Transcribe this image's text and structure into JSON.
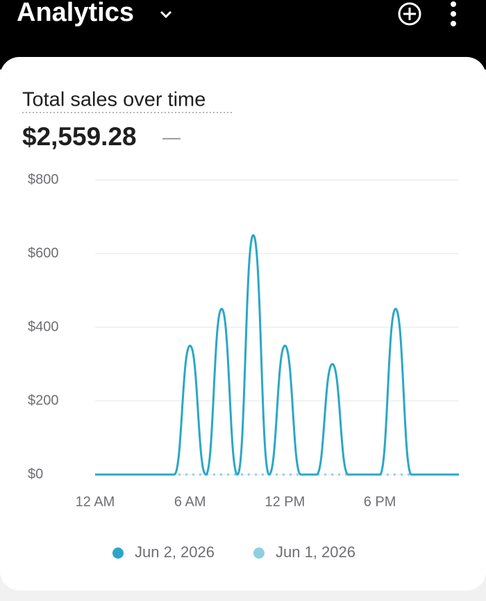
{
  "header": {
    "title": "Analytics"
  },
  "chart_data": {
    "type": "line",
    "title": "Total sales over time",
    "total": "$2,559.28",
    "comparison": "—",
    "categories": [
      "12 AM",
      null,
      null,
      null,
      null,
      null,
      "6 AM",
      null,
      null,
      null,
      null,
      null,
      "12 PM",
      null,
      null,
      null,
      null,
      null,
      "6 PM",
      null,
      null,
      null,
      null,
      null
    ],
    "series": [
      {
        "name": "Jun 2, 2026",
        "color": "#2aa7c7",
        "values": [
          0,
          0,
          0,
          0,
          0,
          0,
          350,
          0,
          450,
          0,
          650,
          0,
          350,
          0,
          0,
          300,
          0,
          0,
          0,
          450,
          0,
          0,
          0,
          0
        ]
      },
      {
        "name": "Jun 1, 2026",
        "color": "#8dcfe3",
        "values": [
          0,
          0,
          0,
          0,
          0,
          0,
          0,
          0,
          0,
          0,
          0,
          0,
          0,
          0,
          0,
          0,
          0,
          0,
          0,
          0,
          0,
          0,
          0,
          0
        ]
      }
    ],
    "ylim": [
      0,
      800
    ],
    "yticks": [
      {
        "value": 0,
        "label": "$0"
      },
      {
        "value": 200,
        "label": "$200"
      },
      {
        "value": 400,
        "label": "$400"
      },
      {
        "value": 600,
        "label": "$600"
      },
      {
        "value": 800,
        "label": "$800"
      }
    ],
    "grid": true
  }
}
